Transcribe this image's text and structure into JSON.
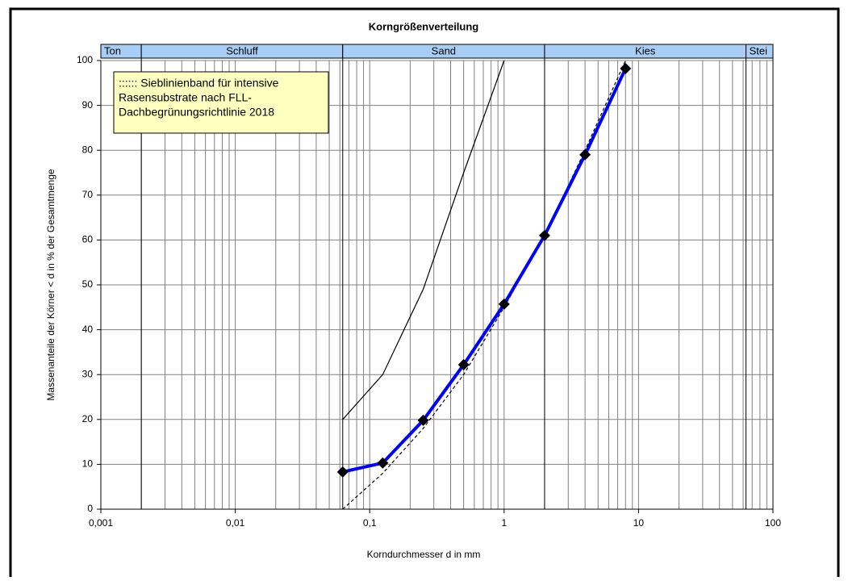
{
  "chart_data": {
    "type": "line",
    "title": "Korngrößenverteilung",
    "x_label": "Korndurchmesser d  in mm",
    "y_label": "Massenanteile der Körner < d in % der Gesamtmenge",
    "log_x": true,
    "xlim": [
      0.001,
      100
    ],
    "xticks": [
      {
        "value": 0.001,
        "label": "0,001"
      },
      {
        "value": 0.01,
        "label": "0,01"
      },
      {
        "value": 0.1,
        "label": "0,1"
      },
      1,
      10,
      100
    ],
    "xminorticks": [
      0.002,
      0.003,
      0.004,
      0.005,
      0.006,
      0.007,
      0.008,
      0.009,
      0.02,
      0.03,
      0.04,
      0.05,
      0.06,
      0.07,
      0.08,
      0.09,
      0.2,
      0.3,
      0.4,
      0.5,
      0.6,
      0.7,
      0.8,
      0.9,
      2,
      3,
      4,
      5,
      6,
      7,
      8,
      9,
      20,
      30,
      40,
      50,
      60,
      70,
      80,
      90
    ],
    "ylim": [
      0,
      100
    ],
    "yticks": [
      0,
      10,
      20,
      30,
      40,
      50,
      60,
      70,
      80,
      90,
      100
    ],
    "grid": true,
    "bands": [
      {
        "name": "Ton",
        "from": 0.001,
        "to": 0.002
      },
      {
        "name": "Schluff",
        "from": 0.002,
        "to": 0.063
      },
      {
        "name": "Sand",
        "from": 0.063,
        "to": 2
      },
      {
        "name": "Kies",
        "from": 2,
        "to": 63
      },
      {
        "name": "Stei",
        "from": 63,
        "to": 100
      }
    ],
    "note": [
      ":::::: Sieblinienband  für intensive",
      "Rasensubstrate nach FLL-",
      "Dachbegrünungsrichtlinie 2018"
    ],
    "series": [
      {
        "color": "#000000",
        "line_style": "solid",
        "markers": false,
        "x": [
          0.063,
          0.125,
          0.25,
          0.5,
          1
        ],
        "values": [
          20,
          30,
          49,
          75,
          100
        ]
      },
      {
        "color": "#000000",
        "line_style": "dashed",
        "markers": false,
        "x": [
          0.063,
          0.125,
          0.25,
          0.5,
          1,
          2,
          4,
          8
        ],
        "values": [
          0,
          8,
          18,
          30,
          45,
          61,
          80,
          100
        ]
      },
      {
        "color": "#0000ff",
        "line_style": "solid",
        "markers": true,
        "x": [
          0.063,
          0.125,
          0.25,
          0.5,
          1,
          2,
          4,
          8
        ],
        "values": [
          8.3,
          10.3,
          19.8,
          32.2,
          45.7,
          61,
          79,
          98.2
        ]
      }
    ]
  }
}
